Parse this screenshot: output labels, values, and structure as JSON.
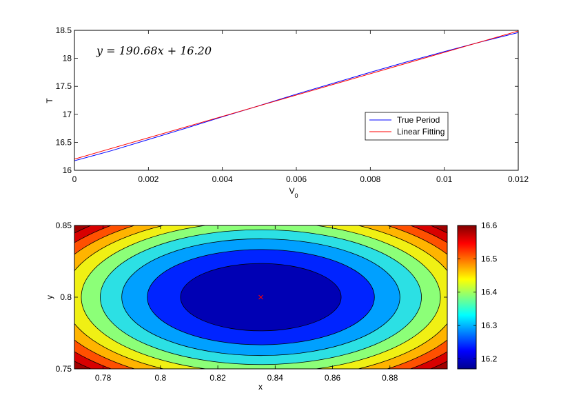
{
  "chart_data": [
    {
      "type": "line",
      "title": "",
      "xlabel": "V",
      "xlabel_subscript": "0",
      "ylabel": "T",
      "xlim": [
        0,
        0.012
      ],
      "ylim": [
        16,
        18.5
      ],
      "xticks": [
        0,
        0.002,
        0.004,
        0.006,
        0.008,
        0.01,
        0.012
      ],
      "xtick_labels": [
        "0",
        "0.002",
        "0.004",
        "0.006",
        "0.008",
        "0.01",
        "0.012"
      ],
      "yticks": [
        16,
        16.5,
        17,
        17.5,
        18,
        18.5
      ],
      "ytick_labels": [
        "16",
        "16.5",
        "17",
        "17.5",
        "18",
        "18.5"
      ],
      "grid": false,
      "legend_position": "lower-right",
      "annotation": "y = 190.68x + 16.20",
      "series": [
        {
          "name": "True Period",
          "color": "#0000ff",
          "x": [
            0,
            0.0005,
            0.001,
            0.002,
            0.003,
            0.004,
            0.005,
            0.006,
            0.007,
            0.008,
            0.009,
            0.01,
            0.011,
            0.012
          ],
          "y": [
            16.17,
            16.26,
            16.35,
            16.55,
            16.75,
            16.955,
            17.155,
            17.36,
            17.555,
            17.75,
            17.94,
            18.12,
            18.295,
            18.46
          ]
        },
        {
          "name": "Linear Fitting",
          "color": "#ff0000",
          "x": [
            0,
            0.012
          ],
          "y": [
            16.2,
            18.488
          ]
        }
      ]
    },
    {
      "type": "heatmap",
      "subtype": "filled-contour",
      "title": "",
      "xlabel": "x",
      "ylabel": "y",
      "xlim": [
        0.77,
        0.9
      ],
      "ylim": [
        0.75,
        0.85
      ],
      "xticks": [
        0.78,
        0.8,
        0.82,
        0.84,
        0.86,
        0.88
      ],
      "xtick_labels": [
        "0.78",
        "0.8",
        "0.82",
        "0.84",
        "0.86",
        "0.88"
      ],
      "yticks": [
        0.75,
        0.8,
        0.85
      ],
      "ytick_labels": [
        "0.75",
        "0.8",
        "0.85"
      ],
      "minimum": {
        "x": 0.835,
        "y": 0.8,
        "marker": "x",
        "color": "#ff0000"
      },
      "contour_levels": [
        16.17,
        16.22,
        16.27,
        16.32,
        16.37,
        16.42,
        16.47,
        16.52,
        16.57,
        16.62,
        16.67
      ],
      "level_colors": [
        "#0000b4",
        "#0024ff",
        "#00a0ff",
        "#2ce0e4",
        "#8cff78",
        "#f0f014",
        "#ffb400",
        "#ff5000",
        "#d80000",
        "#a00000"
      ],
      "colorbar": {
        "range": [
          16.17,
          16.6
        ],
        "ticks": [
          16.2,
          16.3,
          16.4,
          16.5,
          16.6
        ],
        "tick_labels": [
          "16.2",
          "16.3",
          "16.4",
          "16.5",
          "16.6"
        ],
        "colormap": "jet"
      }
    }
  ]
}
